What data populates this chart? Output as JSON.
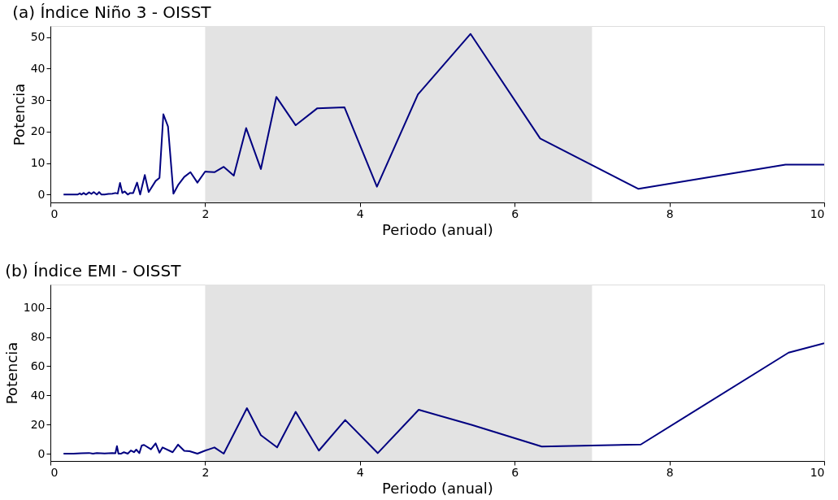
{
  "chart_data": [
    {
      "type": "line",
      "title": "(a) Índice Niño 3 - OISST",
      "xlabel": "Periodo (anual)",
      "ylabel": "Potencia",
      "xlim": [
        0,
        10
      ],
      "xticks": [
        0,
        2,
        4,
        6,
        8,
        10
      ],
      "ylim": [
        -2.5,
        53.5
      ],
      "yticks": [
        0,
        10,
        20,
        30,
        40,
        50
      ],
      "grid": false,
      "bands": [
        {
          "axis": "x",
          "from": 2,
          "to": 7,
          "color": "#e3e3e3"
        }
      ],
      "series": [
        {
          "color": "#000080",
          "x": [
            0.17,
            0.25,
            0.3,
            0.35,
            0.38,
            0.4,
            0.43,
            0.46,
            0.5,
            0.53,
            0.56,
            0.6,
            0.63,
            0.66,
            0.7,
            0.75,
            0.8,
            0.84,
            0.87,
            0.9,
            0.93,
            0.96,
            1.0,
            1.03,
            1.07,
            1.12,
            1.16,
            1.22,
            1.27,
            1.36,
            1.41,
            1.46,
            1.52,
            1.59,
            1.65,
            1.73,
            1.81,
            1.9,
            2.0,
            2.12,
            2.24,
            2.37,
            2.53,
            2.72,
            2.92,
            3.17,
            3.45,
            3.8,
            4.22,
            4.75,
            5.43,
            6.33,
            7.6,
            9.5,
            10.0
          ],
          "values": [
            0,
            0,
            0,
            0,
            0.4,
            0,
            0.5,
            0,
            0.7,
            0.2,
            0.8,
            0,
            0.8,
            0,
            0,
            0.2,
            0.3,
            0.5,
            0.3,
            3.7,
            0.5,
            1,
            0,
            0.5,
            0.5,
            3.8,
            0,
            6.2,
            0.8,
            4.3,
            5.3,
            25.5,
            21.6,
            0.3,
            3,
            5.6,
            7.1,
            3.8,
            7.3,
            7.1,
            8.8,
            6,
            21.1,
            8.1,
            31,
            22,
            27.4,
            27.7,
            2.5,
            31.8,
            51,
            17.8,
            1.8,
            9.5,
            9.5
          ]
        }
      ]
    },
    {
      "type": "line",
      "title": "(b) Índice EMI - OISST",
      "xlabel": "Periodo (anual)",
      "ylabel": "Potencia",
      "xlim": [
        0,
        10
      ],
      "xticks": [
        0,
        2,
        4,
        6,
        8,
        10
      ],
      "ylim": [
        -5,
        116
      ],
      "yticks": [
        0,
        20,
        40,
        60,
        80,
        100
      ],
      "grid": false,
      "bands": [
        {
          "axis": "x",
          "from": 2,
          "to": 7,
          "color": "#e3e3e3"
        }
      ],
      "series": [
        {
          "color": "#000080",
          "x": [
            0.17,
            0.3,
            0.4,
            0.5,
            0.55,
            0.6,
            0.7,
            0.8,
            0.84,
            0.86,
            0.88,
            0.91,
            0.95,
            1.0,
            1.04,
            1.08,
            1.11,
            1.15,
            1.18,
            1.21,
            1.3,
            1.36,
            1.41,
            1.45,
            1.58,
            1.65,
            1.73,
            1.8,
            1.9,
            2.0,
            2.12,
            2.24,
            2.54,
            2.72,
            2.93,
            3.17,
            3.47,
            3.81,
            4.23,
            4.76,
            5.45,
            6.35,
            7.63,
            9.54,
            10.0
          ],
          "values": [
            0,
            0,
            0.3,
            0.5,
            0,
            0.4,
            0.2,
            0.5,
            0.3,
            5.2,
            0,
            0,
            1,
            0,
            2.2,
            1,
            2.8,
            0.4,
            5.6,
            6,
            3,
            7.1,
            0.7,
            4.3,
            1,
            6.2,
            2,
            1.7,
            0,
            2.1,
            4.3,
            0,
            31.2,
            12.7,
            4.3,
            28.7,
            2.1,
            23.1,
            0.4,
            30.1,
            19.7,
            4.9,
            6.3,
            69.3,
            75.7
          ]
        }
      ]
    }
  ]
}
